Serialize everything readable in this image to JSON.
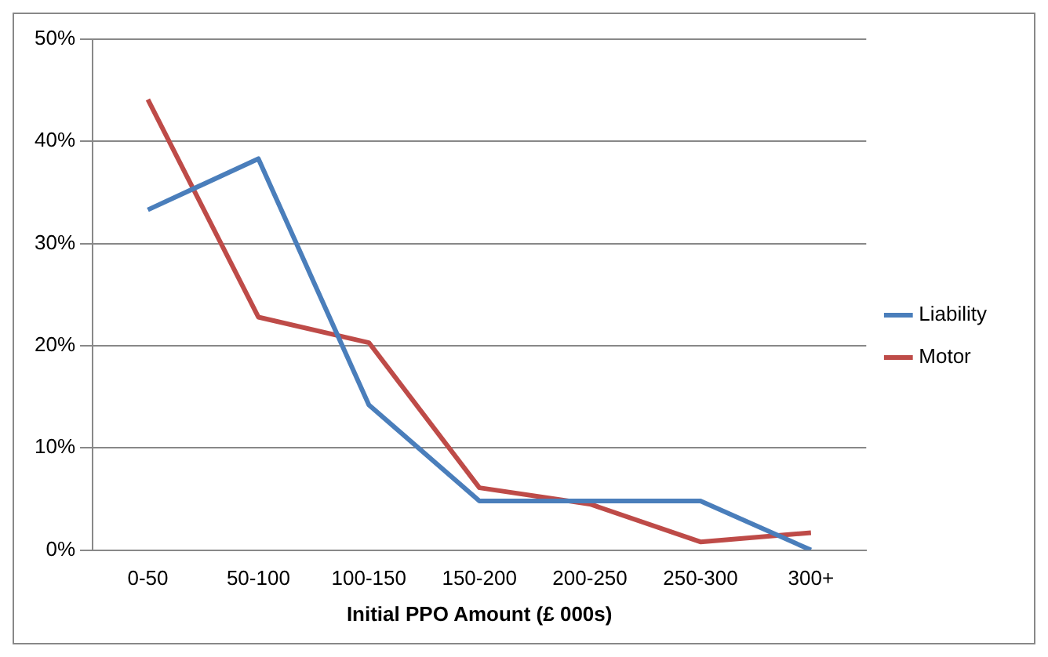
{
  "chart_data": {
    "type": "line",
    "xlabel": "Initial PPO Amount (£ 000s)",
    "categories": [
      "0-50",
      "50-100",
      "100-150",
      "150-200",
      "200-250",
      "250-300",
      "300+"
    ],
    "series": [
      {
        "name": "Liability",
        "color": "#4a7ebb",
        "values": [
          33.3,
          38.3,
          14.2,
          4.8,
          4.8,
          4.8,
          0
        ]
      },
      {
        "name": "Motor",
        "color": "#be4b48",
        "values": [
          44.1,
          22.8,
          20.3,
          6.1,
          4.5,
          0.8,
          1.7
        ]
      }
    ],
    "ylim": [
      0,
      50
    ],
    "yticks": [
      {
        "value": 0,
        "label": "0%"
      },
      {
        "value": 10,
        "label": "10%"
      },
      {
        "value": 20,
        "label": "20%"
      },
      {
        "value": 30,
        "label": "30%"
      },
      {
        "value": 40,
        "label": "40%"
      },
      {
        "value": 50,
        "label": "50%"
      }
    ],
    "grid": "y",
    "legend": "right",
    "marker": "none"
  }
}
